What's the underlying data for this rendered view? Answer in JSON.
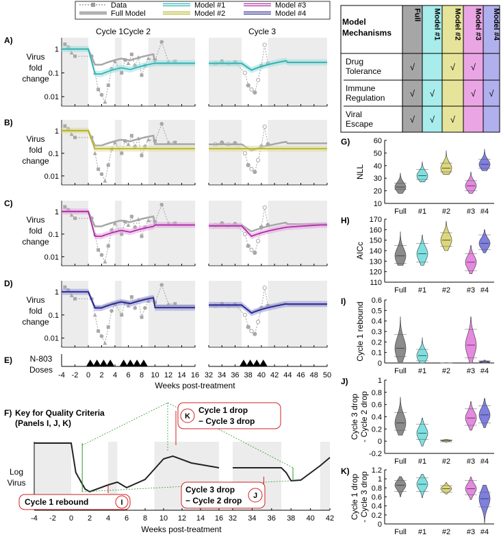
{
  "legend": {
    "items": [
      {
        "label": "Data",
        "color": "#9e9e9e",
        "style": "dotted-marker"
      },
      {
        "label": "Full Model",
        "color": "#b0b0b0",
        "style": "thick"
      },
      {
        "label": "Model #1",
        "color": "#2ab5b5",
        "style": "double"
      },
      {
        "label": "Model #2",
        "color": "#b8b21e",
        "style": "double"
      },
      {
        "label": "Model #3",
        "color": "#b02aa8",
        "style": "double"
      },
      {
        "label": "Model #4",
        "color": "#22228f",
        "style": "double"
      }
    ]
  },
  "cycle_labels": [
    "Cycle 1",
    "Cycle 2",
    "Cycle 3"
  ],
  "panel_letters": [
    "A)",
    "B)",
    "C)",
    "D)",
    "E)",
    "F)",
    "G)",
    "H)",
    "I)",
    "J)",
    "K)"
  ],
  "virus_axis": {
    "ylabel_lines": [
      "Virus",
      "fold",
      "change"
    ],
    "yticks": [
      "1",
      "0.1",
      "0.01"
    ],
    "xticks_left": [
      "-4",
      "-2",
      "0",
      "2",
      "4",
      "6",
      "8",
      "10",
      "12",
      "14",
      "16"
    ],
    "xticks_right": [
      "32",
      "34",
      "36",
      "38",
      "40",
      "42",
      "44",
      "46",
      "48",
      "50"
    ],
    "xlabel": "Weeks post-treatment"
  },
  "doses": {
    "label_lines": [
      "N-803",
      "Doses"
    ],
    "weeks": [
      0,
      1,
      2,
      3,
      5,
      6,
      7,
      8,
      37,
      38,
      39,
      40
    ]
  },
  "mechanism_table": {
    "corner_lines": [
      "Model",
      "Mechanisms"
    ],
    "columns": [
      {
        "label": "Full",
        "color": "#a6a6a6"
      },
      {
        "label": "Model #1",
        "color": "#a8ecec"
      },
      {
        "label": "Model #2",
        "color": "#e6e49a"
      },
      {
        "label": "Model #3",
        "color": "#eaa6e4"
      },
      {
        "label": "Model #4",
        "color": "#b0b0ee"
      }
    ],
    "rows": [
      {
        "label_lines": [
          "Drug",
          "Tolerance"
        ],
        "marks": [
          "√",
          "",
          "√",
          "√",
          ""
        ]
      },
      {
        "label_lines": [
          "Immune",
          "Regulation"
        ],
        "marks": [
          "√",
          "√",
          "",
          "√",
          "√"
        ]
      },
      {
        "label_lines": [
          "Viral",
          "Escape"
        ],
        "marks": [
          "√",
          "√",
          "√",
          "",
          ""
        ]
      }
    ]
  },
  "panel_f": {
    "title_lines": [
      "Key for Quality Criteria",
      "(Panels I, J, K)"
    ],
    "ylabel_lines": [
      "Log",
      "Virus"
    ],
    "xticks": [
      "-4",
      "-2",
      "0",
      "2",
      "4",
      "6",
      "8",
      "10",
      "12",
      "14",
      "16",
      "32",
      "34",
      "36",
      "38",
      "40",
      "42"
    ],
    "xlabel": "Weeks post-treatment",
    "callouts": [
      {
        "text_lines": [
          "Cycle 1 rebound"
        ],
        "badge": "I"
      },
      {
        "text_lines": [
          "Cycle 3 drop",
          "− Cycle 2 drop"
        ],
        "badge": "J"
      },
      {
        "text_lines": [
          "Cycle 1 drop",
          "− Cycle 3 drop"
        ],
        "badge": "K"
      }
    ]
  },
  "violin_categories": [
    "Full",
    "#1",
    "#2",
    "#3",
    "#4"
  ],
  "violin_colors": [
    "#8c8c8c",
    "#7fe0e0",
    "#dcd87a",
    "#e58ae0",
    "#7f7fe0"
  ],
  "chart_data": [
    {
      "type": "violin",
      "panel": "G)",
      "ylabel_lines": [
        "NLL"
      ],
      "ylim": [
        10,
        60
      ],
      "yticks": [
        "10",
        "20",
        "30",
        "40",
        "50",
        "60"
      ],
      "categories": [
        "Full",
        "#1",
        "#2",
        "#3",
        "#4"
      ],
      "series": [
        {
          "name": "Full",
          "min": 18,
          "q1": 21,
          "median": 23,
          "q3": 26,
          "max": 34
        },
        {
          "name": "#1",
          "min": 27,
          "q1": 29,
          "median": 32,
          "q3": 37,
          "max": 43
        },
        {
          "name": "#2",
          "min": 33,
          "q1": 35,
          "median": 38,
          "q3": 42,
          "max": 52
        },
        {
          "name": "#3",
          "min": 18,
          "q1": 20,
          "median": 24,
          "q3": 28,
          "max": 35
        },
        {
          "name": "#4",
          "min": 36,
          "q1": 38,
          "median": 41,
          "q3": 45,
          "max": 53
        }
      ]
    },
    {
      "type": "violin",
      "panel": "H)",
      "ylabel_lines": [
        "AICc"
      ],
      "ylim": [
        110,
        170
      ],
      "yticks": [
        "110",
        "120",
        "130",
        "140",
        "150",
        "160",
        "170"
      ],
      "categories": [
        "Full",
        "#1",
        "#2",
        "#3",
        "#4"
      ],
      "series": [
        {
          "name": "Full",
          "min": 126,
          "q1": 128,
          "median": 135,
          "q3": 145,
          "max": 158
        },
        {
          "name": "#1",
          "min": 126,
          "q1": 129,
          "median": 137,
          "q3": 147,
          "max": 155
        },
        {
          "name": "#2",
          "min": 140,
          "q1": 144,
          "median": 150,
          "q3": 157,
          "max": 168
        },
        {
          "name": "#3",
          "min": 118,
          "q1": 121,
          "median": 129,
          "q3": 137,
          "max": 145
        },
        {
          "name": "#4",
          "min": 138,
          "q1": 141,
          "median": 147,
          "q3": 155,
          "max": 160
        }
      ]
    },
    {
      "type": "violin",
      "panel": "I)",
      "ylabel_lines": [
        "Cycle 1 rebound"
      ],
      "ylim": [
        0,
        0.6
      ],
      "yticks": [
        "0",
        "0.1",
        "0.2",
        "0.3",
        "0.4",
        "0.5",
        "0.6"
      ],
      "categories": [
        "Full",
        "#1",
        "#2",
        "#3",
        "#4"
      ],
      "series": [
        {
          "name": "Full",
          "min": 0.01,
          "q1": 0.06,
          "median": 0.14,
          "q3": 0.27,
          "max": 0.44
        },
        {
          "name": "#1",
          "min": 0.0,
          "q1": 0.02,
          "median": 0.07,
          "q3": 0.13,
          "max": 0.24
        },
        {
          "name": "#2",
          "min": 0.0,
          "q1": 0.0,
          "median": 0.0,
          "q3": 0.0,
          "max": 0.005
        },
        {
          "name": "#3",
          "min": 0.0,
          "q1": 0.05,
          "median": 0.17,
          "q3": 0.32,
          "max": 0.44
        },
        {
          "name": "#4",
          "min": 0.0,
          "q1": 0.0,
          "median": 0.01,
          "q3": 0.02,
          "max": 0.03
        }
      ]
    },
    {
      "type": "violin",
      "panel": "J)",
      "ylabel_lines": [
        "Cycle 3 drop",
        "- Cycle 2 drop"
      ],
      "ylim": [
        -0.2,
        1
      ],
      "yticks": [
        "-0.2",
        "0",
        "0.2",
        "0.4",
        "0.6",
        "0.8",
        "1"
      ],
      "categories": [
        "Full",
        "#1",
        "#2",
        "#3",
        "#4"
      ],
      "series": [
        {
          "name": "Full",
          "min": 0.1,
          "q1": 0.18,
          "median": 0.3,
          "q3": 0.47,
          "max": 0.72
        },
        {
          "name": "#1",
          "min": -0.08,
          "q1": 0.03,
          "median": 0.13,
          "q3": 0.28,
          "max": 0.38
        },
        {
          "name": "#2",
          "min": -0.02,
          "q1": -0.01,
          "median": 0.01,
          "q3": 0.02,
          "max": 0.03
        },
        {
          "name": "#3",
          "min": 0.18,
          "q1": 0.26,
          "median": 0.38,
          "q3": 0.53,
          "max": 0.65
        },
        {
          "name": "#4",
          "min": 0.22,
          "q1": 0.3,
          "median": 0.43,
          "q3": 0.58,
          "max": 0.7
        }
      ]
    },
    {
      "type": "violin",
      "panel": "K)",
      "ylabel_lines": [
        "Cycle 1 drop",
        "- Cycle 3 drop"
      ],
      "ylim": [
        0,
        1.2
      ],
      "yticks": [
        "0",
        "0.2",
        "0.4",
        "0.6",
        "0.8",
        "1",
        "1.2"
      ],
      "categories": [
        "Full",
        "#1",
        "#2",
        "#3",
        "#4"
      ],
      "series": [
        {
          "name": "Full",
          "min": 0.6,
          "q1": 0.72,
          "median": 0.86,
          "q3": 0.96,
          "max": 1.05
        },
        {
          "name": "#1",
          "min": 0.58,
          "q1": 0.72,
          "median": 0.88,
          "q3": 1.02,
          "max": 1.1
        },
        {
          "name": "#2",
          "min": 0.66,
          "q1": 0.7,
          "median": 0.78,
          "q3": 0.85,
          "max": 0.92
        },
        {
          "name": "#3",
          "min": 0.54,
          "q1": 0.65,
          "median": 0.78,
          "q3": 0.96,
          "max": 1.04
        },
        {
          "name": "#4",
          "min": 0.02,
          "q1": 0.38,
          "median": 0.56,
          "q3": 0.7,
          "max": 0.86
        }
      ]
    }
  ]
}
